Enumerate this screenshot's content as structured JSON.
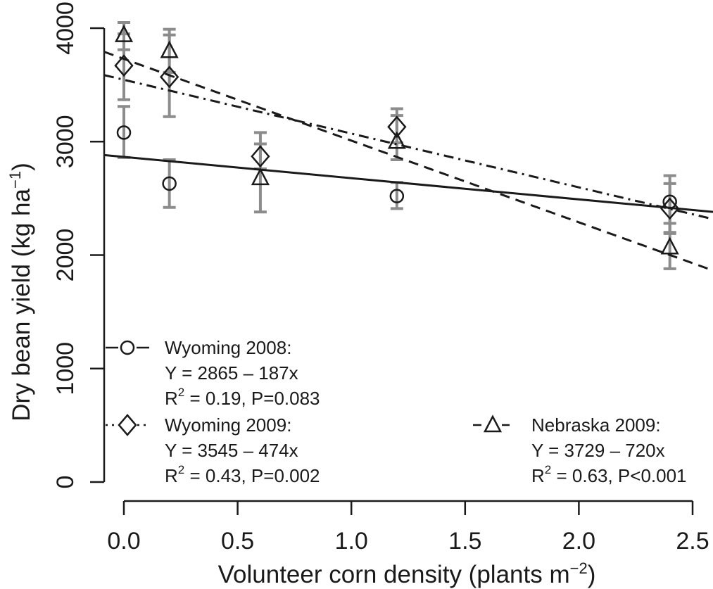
{
  "chart_data": {
    "type": "scatter",
    "xlabel": "Volunteer corn density (plants m",
    "xlabel_sup": "−2",
    "xlabel_end": ")",
    "ylabel": "Dry bean yield (kg ha",
    "ylabel_sup": "−1",
    "ylabel_end": ")",
    "xlim": [
      -0.05,
      2.6
    ],
    "ylim": [
      0,
      4000
    ],
    "x_ticks": [
      0.0,
      0.5,
      1.0,
      1.5,
      2.0,
      2.5
    ],
    "x_tick_labels": [
      "0.0",
      "0.5",
      "1.0",
      "1.5",
      "2.0",
      "2.5"
    ],
    "y_ticks": [
      0,
      1000,
      2000,
      3000,
      4000
    ],
    "y_tick_labels": [
      "0",
      "1000",
      "2000",
      "3000",
      "4000"
    ],
    "series": [
      {
        "name": "Wyoming 2008:",
        "marker": "circle",
        "line": "solid",
        "intercept": 2865,
        "slope": -187,
        "equation": "Y = 2865 – 187x",
        "stats_sup": "2",
        "stats_rest": " = 0.19, P=0.083",
        "points": [
          {
            "x": 0.0,
            "y": 3080,
            "lo": 2860,
            "hi": 3310
          },
          {
            "x": 0.2,
            "y": 2630,
            "lo": 2420,
            "hi": 2840
          },
          {
            "x": 1.2,
            "y": 2520,
            "lo": 2410,
            "hi": 2640
          },
          {
            "x": 2.4,
            "y": 2470,
            "lo": 2200,
            "hi": 2700
          }
        ]
      },
      {
        "name": "Wyoming 2009:",
        "marker": "diamond",
        "line": "dashdot",
        "intercept": 3545,
        "slope": -474,
        "equation": "Y = 3545 – 474x",
        "stats_sup": "2",
        "stats_rest": " = 0.43, P=0.002",
        "points": [
          {
            "x": 0.0,
            "y": 3670,
            "lo": 3370,
            "hi": 3950
          },
          {
            "x": 0.2,
            "y": 3570,
            "lo": 3220,
            "hi": 3940
          },
          {
            "x": 0.6,
            "y": 2870,
            "lo": 2760,
            "hi": 2980
          },
          {
            "x": 1.2,
            "y": 3130,
            "lo": 2990,
            "hi": 3290
          },
          {
            "x": 2.4,
            "y": 2410,
            "lo": 2190,
            "hi": 2630
          }
        ]
      },
      {
        "name": "Nebraska 2009:",
        "marker": "triangle",
        "line": "dashed",
        "intercept": 3729,
        "slope": -720,
        "equation": "Y = 3729 – 720x",
        "stats_sup": "2",
        "stats_rest": " = 0.63, P<0.001",
        "points": [
          {
            "x": 0.0,
            "y": 3940,
            "lo": 3810,
            "hi": 4050
          },
          {
            "x": 0.2,
            "y": 3800,
            "lo": 3610,
            "hi": 3990
          },
          {
            "x": 0.6,
            "y": 2680,
            "lo": 2380,
            "hi": 3080
          },
          {
            "x": 1.2,
            "y": 3000,
            "lo": 2840,
            "hi": 3230
          },
          {
            "x": 2.4,
            "y": 2070,
            "lo": 1880,
            "hi": 2280
          }
        ]
      }
    ],
    "errorbar_color": "#8c8c8c",
    "line_color": "#1a1a1a"
  }
}
